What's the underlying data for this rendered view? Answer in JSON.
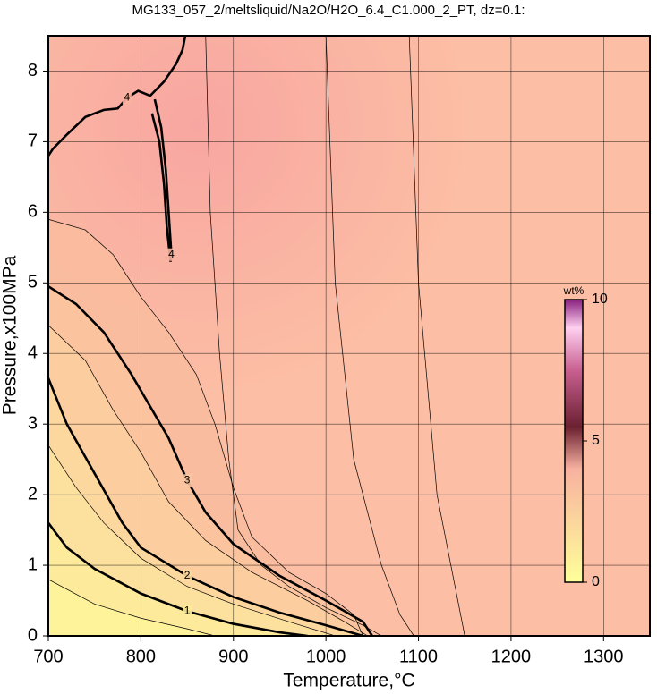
{
  "chart_data": {
    "type": "contour",
    "title": "MG133_057_2/meltsliquid/Na2O/H2O_6.4_C1.000_2_PT, dz=0.1:",
    "x_label": "Temperature,°C",
    "y_label": "Pressure,x100MPa",
    "xlim": [
      700,
      1350
    ],
    "ylim": [
      0,
      8.5
    ],
    "xticks": [
      700,
      800,
      900,
      1000,
      1100,
      1200,
      1300
    ],
    "yticks": [
      0,
      1,
      2,
      3,
      4,
      5,
      6,
      7,
      8
    ],
    "grid": true,
    "colorbar": {
      "label": "wt%",
      "clim": [
        0,
        10
      ],
      "ticks": [
        0,
        5,
        10
      ]
    },
    "colorscale": [
      {
        "value": 0,
        "color": "#ffff99"
      },
      {
        "value": 4,
        "color": "#f8b2a0"
      },
      {
        "value": 5.5,
        "color": "#6b2030"
      },
      {
        "value": 7.5,
        "color": "#c86090"
      },
      {
        "value": 9,
        "color": "#ffd0f0"
      },
      {
        "value": 10,
        "color": "#8a2080"
      }
    ],
    "contours": [
      {
        "level": 3.5,
        "x": [
          700,
          740,
          770,
          800,
          830,
          860,
          880,
          900,
          920,
          960,
          1000,
          1030,
          1040
        ],
        "y": [
          5.9,
          5.75,
          5.4,
          4.8,
          4.3,
          3.7,
          3.0,
          2.1,
          1.4,
          0.9,
          0.6,
          0.3,
          0
        ]
      },
      {
        "level": 3,
        "x": [
          700,
          730,
          760,
          790,
          810,
          830,
          850,
          870,
          900,
          950,
          1000,
          1040,
          1050
        ],
        "y": [
          4.95,
          4.7,
          4.3,
          3.7,
          3.25,
          2.8,
          2.2,
          1.75,
          1.3,
          0.85,
          0.5,
          0.2,
          0
        ]
      },
      {
        "level": 2.5,
        "x": [
          700,
          740,
          770,
          800,
          830,
          870,
          920,
          980,
          1020,
          1045
        ],
        "y": [
          4.4,
          3.9,
          3.2,
          2.6,
          1.9,
          1.35,
          0.9,
          0.5,
          0.2,
          0
        ]
      },
      {
        "level": 2,
        "x": [
          700,
          720,
          750,
          780,
          800,
          850,
          900,
          950,
          1000,
          1040
        ],
        "y": [
          3.65,
          3.0,
          2.3,
          1.6,
          1.25,
          0.85,
          0.55,
          0.33,
          0.15,
          0
        ]
      },
      {
        "level": 1.5,
        "x": [
          700,
          730,
          760,
          800,
          850,
          900,
          960,
          1010
        ],
        "y": [
          2.7,
          2.1,
          1.6,
          1.1,
          0.7,
          0.45,
          0.2,
          0
        ]
      },
      {
        "level": 1,
        "x": [
          700,
          720,
          750,
          800,
          850,
          900,
          950,
          980
        ],
        "y": [
          1.6,
          1.25,
          0.95,
          0.6,
          0.35,
          0.17,
          0.05,
          0
        ]
      },
      {
        "level": 0.5,
        "x": [
          700,
          750,
          800,
          850,
          880
        ],
        "y": [
          0.8,
          0.45,
          0.25,
          0.1,
          0
        ]
      },
      {
        "level": 4,
        "x": [
          848,
          845,
          838,
          825,
          810,
          797,
          785,
          775,
          760,
          740,
          720,
          705,
          700
        ],
        "y": [
          8.5,
          8.3,
          8.1,
          7.85,
          7.65,
          7.72,
          7.62,
          7.47,
          7.45,
          7.35,
          7.1,
          6.9,
          6.8
        ]
      },
      {
        "level": 4,
        "x": [
          812,
          820,
          825,
          828,
          832,
          833,
          830,
          827,
          822,
          815
        ],
        "y": [
          7.4,
          7.0,
          6.4,
          5.8,
          5.3,
          5.4,
          6.0,
          6.6,
          7.2,
          7.6
        ]
      },
      {
        "level": 3.8,
        "x": [
          870,
          875,
          885,
          895,
          905,
          930,
          960,
          1000,
          1040,
          1060
        ],
        "y": [
          8.5,
          6.0,
          4.0,
          2.5,
          1.5,
          1.0,
          0.7,
          0.4,
          0.15,
          0
        ]
      },
      {
        "level": 3.9,
        "x": [
          1000,
          1010,
          1030,
          1060,
          1080,
          1095
        ],
        "y": [
          8.5,
          5.0,
          2.5,
          1.0,
          0.3,
          0
        ]
      },
      {
        "level": 3.95,
        "x": [
          1090,
          1100,
          1120,
          1150
        ],
        "y": [
          8.5,
          5.0,
          2.0,
          0
        ]
      }
    ]
  }
}
